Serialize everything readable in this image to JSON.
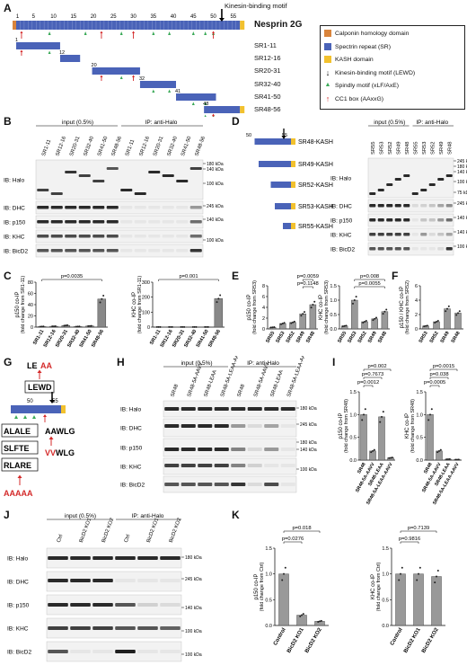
{
  "panelA": {
    "label": "A",
    "callout": "Kinesin-binding motif",
    "protein": "Nesprin 2G",
    "ticks": [
      "1",
      "5",
      "10",
      "15",
      "20",
      "25",
      "30",
      "35",
      "40",
      "45",
      "50",
      "55"
    ],
    "constructs": [
      "SR1-11",
      "SR12-16",
      "SR20-31",
      "SR32-40",
      "SR41-50",
      "SR48-56"
    ],
    "legend": [
      {
        "label": "Calponin homology domain",
        "color": "#d9843c",
        "kind": "box"
      },
      {
        "label": "Spectrin repeat (SR)",
        "color": "#4a63b8",
        "kind": "box"
      },
      {
        "label": "KASH domain",
        "color": "#f2c12e",
        "kind": "box"
      },
      {
        "label": "Kinesin-binding motif (LEWD)",
        "color": "#000000",
        "kind": "arrow"
      },
      {
        "label": "Spindly motif (xLF/AxE)",
        "color": "#3aa957",
        "kind": "tri"
      },
      {
        "label": "CC1 box (AAxxG)",
        "color": "#d42a2a",
        "kind": "uparrow"
      }
    ]
  },
  "panelB": {
    "label": "B",
    "group_input": "input (0.5%)",
    "group_ip": "IP: anti-Halo",
    "lanes": [
      "SR1-11",
      "SR12-16",
      "SR20-31",
      "SR32-40",
      "SR41-50",
      "SR48-56",
      "SR1-11",
      "SR12-16",
      "SR20-31",
      "SR32-40",
      "SR41-50",
      "SR48-56"
    ],
    "blots": [
      "IB: Halo",
      "IB: DHC",
      "IB: p150",
      "IB: KHC",
      "IB: BicD2"
    ],
    "markers": [
      "180 kDa",
      "140 kDa",
      "100 kDa",
      "245 kDa",
      "140 kDa",
      "100 kDa"
    ]
  },
  "panelC": {
    "label": "C",
    "charts": [
      {
        "ylabel": "p150 co-IP",
        "ylabel2": "(fold change from SR1-11)",
        "categories": [
          "SR1-11",
          "SR12-16",
          "SR20-31",
          "SR32-40",
          "SR41-50",
          "SR48-56"
        ],
        "values": [
          1,
          1.5,
          3,
          1,
          2,
          50
        ],
        "ylim": [
          0,
          80
        ],
        "yticks": [
          "0",
          "20",
          "40",
          "60",
          "80"
        ],
        "pval": "p=0.0035"
      },
      {
        "ylabel": "KHC co-IP",
        "ylabel2": "(fold change from SR1-11)",
        "categories": [
          "SR1-11",
          "SR12-16",
          "SR20-31",
          "SR32-40",
          "SR41-50",
          "SR48-56"
        ],
        "values": [
          1,
          1,
          1,
          1,
          1,
          190
        ],
        "ylim": [
          0,
          300
        ],
        "yticks": [
          "0",
          "100",
          "200",
          "300"
        ],
        "pval": "p=0.001"
      }
    ]
  },
  "panelD": {
    "label": "D",
    "constructs": [
      "SR48-KASH",
      "SR49-KASH",
      "SR52-KASH",
      "SR53-KASH",
      "SR55-KASH"
    ],
    "group_input": "input (0.5%)",
    "group_ip": "IP: anti-Halo",
    "lanes": [
      "SR55",
      "SR53",
      "SR52",
      "SR49",
      "SR48",
      "SR55",
      "SR53",
      "SR52",
      "SR49",
      "SR48"
    ],
    "blots": [
      "IB: Halo",
      "IB: DHC",
      "IB: p150",
      "IB: KHC",
      "IB: BicD2"
    ],
    "markers": [
      "245 kDa",
      "180 kDa",
      "140 kDa",
      "100 kDa",
      "75 kDa",
      "245 kDa",
      "140 kDa",
      "140 kDa",
      "100 kDa",
      "100 kDa"
    ]
  },
  "panelE": {
    "label": "E",
    "charts": [
      {
        "ylabel": "p150 co-IP",
        "ylabel2": "(fold change from SR53)",
        "categories": [
          "SR55",
          "SR53",
          "SR52",
          "SR49",
          "SR48"
        ],
        "values": [
          0.3,
          1,
          1.2,
          2.8,
          4.5
        ],
        "ylim": [
          0,
          8
        ],
        "yticks": [
          "0",
          "2",
          "4",
          "6",
          "8"
        ],
        "pvals": [
          "p=0.0059",
          "p=0.1148"
        ]
      },
      {
        "ylabel": "KHC co-IP",
        "ylabel2": "(fold change from SR53)",
        "categories": [
          "SR55",
          "SR53",
          "SR52",
          "SR49",
          "SR48"
        ],
        "values": [
          0.1,
          1,
          0.25,
          0.35,
          0.6
        ],
        "ylim": [
          0,
          1.5
        ],
        "yticks": [
          "0.0",
          "0.5",
          "1.0",
          "1.5"
        ],
        "pvals": [
          "p=0.008",
          "p=0.0055"
        ]
      }
    ]
  },
  "panelF": {
    "label": "F",
    "ylabel": "p150 / KHC co-IP",
    "ylabel2": "(fold change from SR52)",
    "categories": [
      "SR53",
      "SR52",
      "SR49",
      "SR48"
    ],
    "values": [
      0.4,
      1,
      2.8,
      2.2
    ],
    "ylim": [
      0,
      6
    ],
    "yticks": [
      "0",
      "2",
      "4",
      "6"
    ]
  },
  "panelG": {
    "label": "G",
    "seq_top_black": "LE",
    "seq_top_red": "AA",
    "seq_box": "LEWD",
    "tick50": "50",
    "tick55": "55",
    "motifs": [
      "ALALE",
      "SLFTE",
      "RLARE"
    ],
    "right_seq1_a": "AAWLG",
    "right_seq2_red": "VV",
    "right_seq2_black": "WLG",
    "bottom_red": "AAAAA"
  },
  "panelH": {
    "label": "H",
    "group_input": "input (0.5%)",
    "group_ip": "IP: anti-Halo",
    "lanes": [
      "SR48",
      "SR48-5A-AAVV",
      "SR48-LEAA",
      "SR48-5A-LEAA-AAVV",
      "SR48",
      "SR48-5A-AAVV",
      "SR48-LEAA",
      "SR48-5A-LEAA-AAVV"
    ],
    "blots": [
      "IB: Halo",
      "IB: DHC",
      "IB: p150",
      "IB: KHC",
      "IB: BicD2"
    ],
    "markers": [
      "180 kDa",
      "245 kDa",
      "180 kDa",
      "140 kDa",
      "100 kDa"
    ]
  },
  "panelI": {
    "label": "I",
    "charts": [
      {
        "ylabel": "p150 co-IP",
        "ylabel2": "(fold change from SR48)",
        "categories": [
          "SR48",
          "SR48-5A-AAVV",
          "SR48-LEAA",
          "SR48-5A-LEAA-AAVV"
        ],
        "values": [
          1,
          0.2,
          0.95,
          0.05
        ],
        "ylim": [
          0,
          1.5
        ],
        "yticks": [
          "0.0",
          "0.5",
          "1.0",
          "1.5"
        ],
        "pvals": [
          "p=0.002",
          "p=0.7673",
          "p=0.0012"
        ]
      },
      {
        "ylabel": "KHC co-IP",
        "ylabel2": "(fold change from SR48)",
        "categories": [
          "SR48",
          "SR48-5A-AAVV",
          "SR48-LEAA",
          "SR48-5A-LEAA-AAVV"
        ],
        "values": [
          1,
          0.2,
          0.02,
          0.01
        ],
        "ylim": [
          0,
          1.5
        ],
        "yticks": [
          "0.0",
          "0.5",
          "1.0",
          "1.5"
        ],
        "pvals": [
          "p=0.0015",
          "p=0.038",
          "p=0.0005"
        ]
      }
    ]
  },
  "panelJ": {
    "label": "J",
    "group_input": "input (0.5%)",
    "group_ip": "IP: anti-Halo",
    "lanes": [
      "Ctrl",
      "BicD2 KO1",
      "BicD2 KO2",
      "Ctrl",
      "BicD2 KO1",
      "BicD2 KO2"
    ],
    "blots": [
      "IB: Halo",
      "IB: DHC",
      "IB: p150",
      "IB: KHC",
      "IB: BicD2"
    ],
    "markers": [
      "180 kDa",
      "245 kDa",
      "140 kDa",
      "100 kDa",
      "100 kDa"
    ]
  },
  "panelK": {
    "label": "K",
    "charts": [
      {
        "ylabel": "p150 co-IP",
        "ylabel2": "(fold change from Ctrl)",
        "categories": [
          "Control",
          "BicD2 KO1",
          "BicD2 KO2"
        ],
        "values": [
          1,
          0.2,
          0.08
        ],
        "ylim": [
          0,
          1.5
        ],
        "yticks": [
          "0.0",
          "0.5",
          "1.0",
          "1.5"
        ],
        "pvals": [
          "p=0.018",
          "p=0.0276"
        ]
      },
      {
        "ylabel": "KHC co-IP",
        "ylabel2": "(fold change from Ctrl)",
        "categories": [
          "Control",
          "BicD2 KO1",
          "BicD2 KO2"
        ],
        "values": [
          1,
          1,
          0.95
        ],
        "ylim": [
          0,
          1.5
        ],
        "yticks": [
          "0.0",
          "0.5",
          "1.0",
          "1.5"
        ],
        "pvals": [
          "p=0.7139",
          "p=0.9816"
        ]
      }
    ]
  }
}
